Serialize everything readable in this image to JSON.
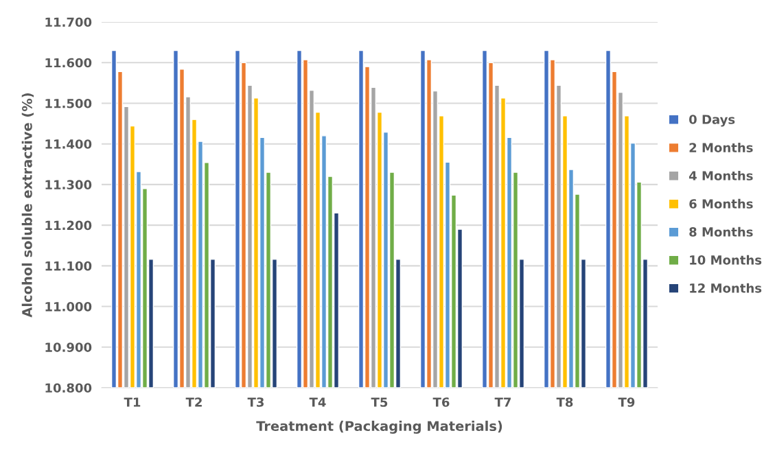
{
  "chart_data": {
    "type": "bar",
    "xlabel": "Treatment (Packaging Materials)",
    "ylabel": "Alcohol soluble extractive (%)",
    "categories": [
      "T1",
      "T2",
      "T3",
      "T4",
      "T5",
      "T6",
      "T7",
      "T8",
      "T9"
    ],
    "series": [
      {
        "name": "0 Days",
        "color": "#4472c4",
        "values": [
          11.63,
          11.63,
          11.63,
          11.63,
          11.63,
          11.63,
          11.63,
          11.63,
          11.63
        ]
      },
      {
        "name": "2 Months",
        "color": "#ed7d31",
        "values": [
          11.578,
          11.584,
          11.6,
          11.607,
          11.59,
          11.607,
          11.6,
          11.607,
          11.578
        ]
      },
      {
        "name": "4 Months",
        "color": "#a5a5a5",
        "values": [
          11.492,
          11.516,
          11.544,
          11.532,
          11.539,
          11.53,
          11.544,
          11.544,
          11.527
        ]
      },
      {
        "name": "6 Months",
        "color": "#ffc000",
        "values": [
          11.444,
          11.46,
          11.513,
          11.478,
          11.478,
          11.469,
          11.513,
          11.469,
          11.469
        ]
      },
      {
        "name": "8 Months",
        "color": "#5b9bd5",
        "values": [
          11.332,
          11.406,
          11.416,
          11.42,
          11.429,
          11.355,
          11.416,
          11.337,
          11.402
        ]
      },
      {
        "name": "10 Months",
        "color": "#70ad47",
        "values": [
          11.29,
          11.354,
          11.33,
          11.32,
          11.33,
          11.274,
          11.33,
          11.276,
          11.306
        ]
      },
      {
        "name": "12 Months",
        "color": "#264478",
        "values": [
          11.116,
          11.116,
          11.116,
          11.23,
          11.116,
          11.19,
          11.116,
          11.116,
          11.116
        ]
      }
    ],
    "ylim": [
      10.8,
      11.7
    ],
    "yticks": [
      {
        "value": 10.8,
        "label": "10.800"
      },
      {
        "value": 10.9,
        "label": "10.900"
      },
      {
        "value": 11.0,
        "label": "11.000"
      },
      {
        "value": 11.1,
        "label": "11.100"
      },
      {
        "value": 11.2,
        "label": "11.200"
      },
      {
        "value": 11.3,
        "label": "11.300"
      },
      {
        "value": 11.4,
        "label": "11.400"
      },
      {
        "value": 11.5,
        "label": "11.500"
      },
      {
        "value": 11.6,
        "label": "11.600"
      },
      {
        "value": 11.7,
        "label": "11.700"
      }
    ],
    "grid": "y",
    "legend": "right"
  }
}
